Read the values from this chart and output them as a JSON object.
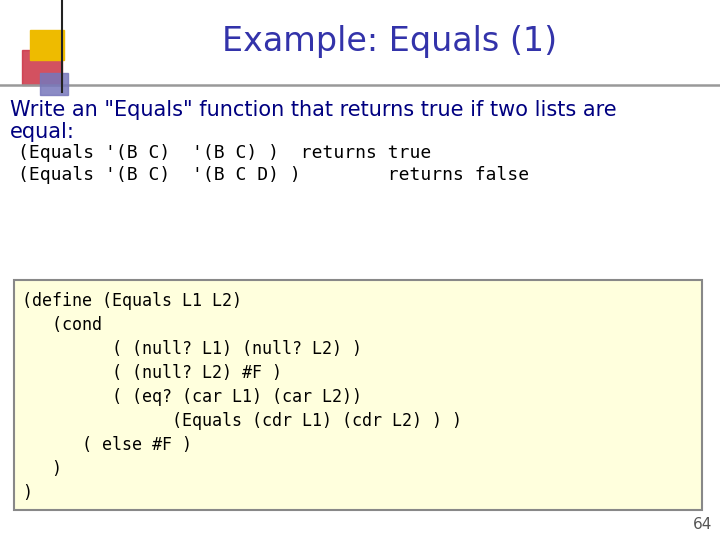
{
  "title": "Example: Equals (1)",
  "title_color": "#3333aa",
  "title_fontsize": 24,
  "bg_color": "#ffffff",
  "body_text1": "Write an \"Equals\" function that returns true if two lists are",
  "body_text2": "equal:",
  "body_fontsize": 15,
  "body_color": "#000080",
  "example_lines": [
    "(Equals '(B C)  '(B C) )  returns true",
    "(Equals '(B C)  '(B C D) )        returns false"
  ],
  "example_fontsize": 13,
  "example_color": "#000000",
  "code_lines": [
    "(define (Equals L1 L2)",
    "   (cond",
    "         ( (null? L1) (null? L2) )",
    "         ( (null? L2) #F )",
    "         ( (eq? (car L1) (car L2))",
    "               (Equals (cdr L1) (cdr L2) ) )",
    "      ( else #F )",
    "   )",
    ")"
  ],
  "code_fontsize": 12,
  "code_color": "#000000",
  "code_box_bg": "#ffffdd",
  "code_box_edge": "#888888",
  "page_number": "64",
  "line_color": "#999999"
}
